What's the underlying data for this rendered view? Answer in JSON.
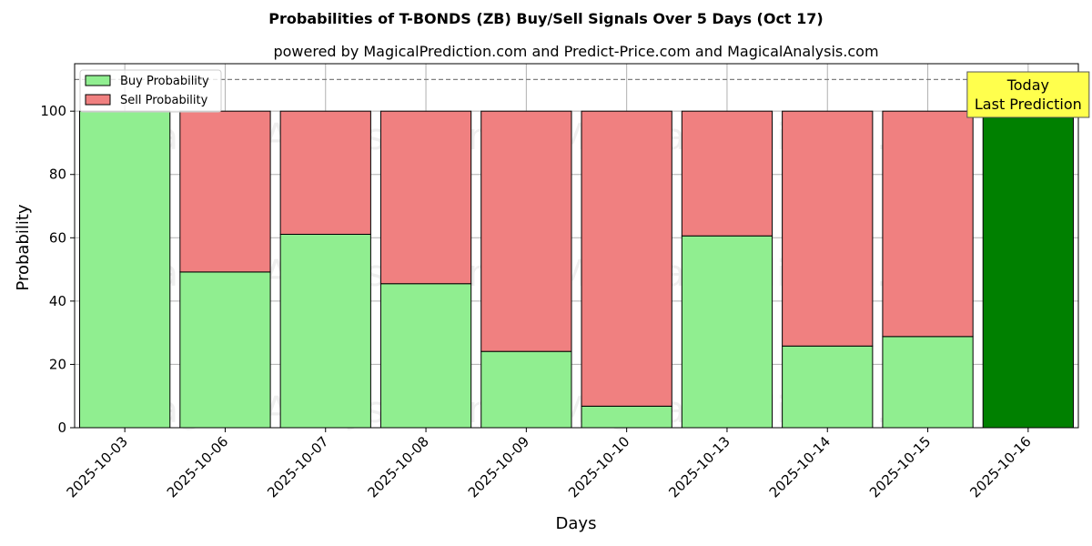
{
  "chart_data": {
    "type": "bar",
    "stacked": true,
    "title": "Probabilities of T-BONDS (ZB) Buy/Sell Signals Over 5 Days (Oct 17)",
    "subtitle": "powered by MagicalPrediction.com and Predict-Price.com and MagicalAnalysis.com",
    "xlabel": "Days",
    "ylabel": "Probability",
    "ylim": [
      0,
      115
    ],
    "yticks": [
      0,
      20,
      40,
      60,
      80,
      100
    ],
    "grid": true,
    "legend_position": "top-left",
    "categories": [
      "2025-10-03",
      "2025-10-06",
      "2025-10-07",
      "2025-10-08",
      "2025-10-09",
      "2025-10-10",
      "2025-10-13",
      "2025-10-14",
      "2025-10-15",
      "2025-10-16"
    ],
    "series": [
      {
        "name": "Buy Probability",
        "color": "#90ee90",
        "values": [
          100,
          49.2,
          61.1,
          45.5,
          24.1,
          6.8,
          60.6,
          25.8,
          28.8,
          100
        ]
      },
      {
        "name": "Sell Probability",
        "color": "#f08080",
        "values": [
          0,
          50.8,
          38.9,
          54.5,
          75.9,
          93.2,
          39.4,
          74.2,
          71.2,
          0
        ]
      }
    ],
    "highlight": {
      "index": 9,
      "color": "#008000"
    },
    "reference_line": {
      "y": 110,
      "style": "dashed",
      "color": "#808080"
    },
    "annotation": {
      "lines": [
        "Today",
        "Last Prediction"
      ],
      "background": "#ffff4d",
      "category_index": 9
    },
    "watermarks": [
      "MagicalAnalysis.com",
      "MagicalPrediction.com"
    ]
  }
}
